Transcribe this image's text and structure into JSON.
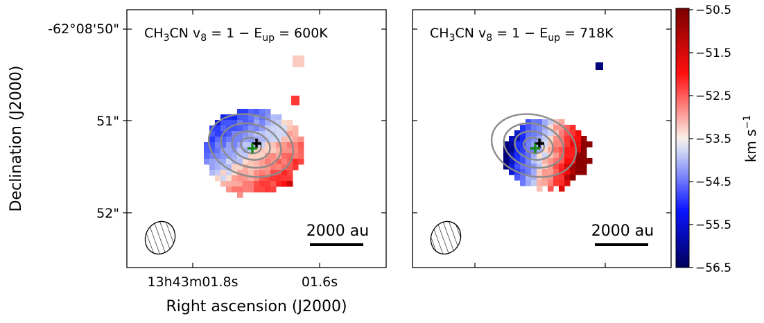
{
  "axes": {
    "ylabel": "Declination (J2000)",
    "xlabel": "Right ascension (J2000)",
    "yticklabels": [
      "-62°08'50\"",
      "51\"",
      "52\""
    ],
    "xticklabels": [
      "13h43m01.8s",
      "01.6s"
    ]
  },
  "panels": [
    {
      "label": [
        "CH",
        "3",
        "CN v",
        "8",
        " = 1  −  E",
        "up",
        "  =  600K"
      ],
      "scalebar": "2000 au"
    },
    {
      "label": [
        "CH",
        "3",
        "CN v",
        "8",
        " = 1  −  E",
        "up",
        "  =  718K"
      ],
      "scalebar": "2000 au"
    }
  ],
  "colorbar": {
    "label": "km s",
    "label_sup": "−1",
    "lim": [
      -56.5,
      -50.5
    ],
    "ticks": [
      {
        "value": -50.5,
        "label": "−50.5"
      },
      {
        "value": -51.5,
        "label": "−51.5"
      },
      {
        "value": -52.5,
        "label": "−52.5"
      },
      {
        "value": -53.5,
        "label": "−53.5"
      },
      {
        "value": -54.5,
        "label": "−54.5"
      },
      {
        "value": -55.5,
        "label": "−55.5"
      },
      {
        "value": -56.5,
        "label": "−56.5"
      }
    ]
  }
}
